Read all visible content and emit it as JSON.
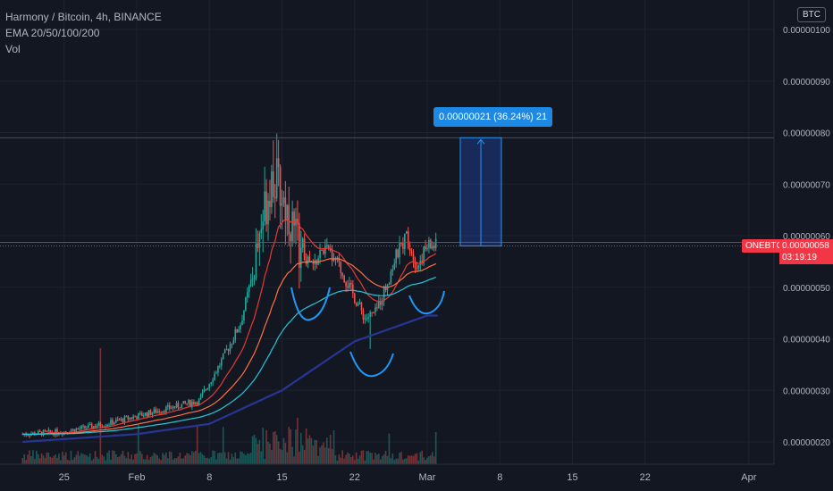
{
  "legend": {
    "title": "Harmony / Bitcoin, 4h, BINANCE",
    "indicator": "EMA 20/50/100/200",
    "volume": "Vol"
  },
  "currency_badge": "BTC",
  "symbol_tag": "ONEBTC",
  "last_price": "0.00000058",
  "countdown": "03:19:19",
  "measure_label": "0.00000021 (36.24%) 21",
  "colors": {
    "background": "#131722",
    "up": "#26a69a",
    "down": "#ef5350",
    "ema20": "#e53935",
    "ema50": "#ff7043",
    "ema100": "#26c6da",
    "ema200": "#283593",
    "pattern": "#2196f3",
    "measure": "#1e88e5",
    "price_tag": "#f23645"
  },
  "chart_data": {
    "type": "candlestick",
    "title": "Harmony / Bitcoin, 4h, BINANCE",
    "y_unit": "BTC",
    "y_ticks": [
      "0.00000100",
      "0.00000090",
      "0.00000080",
      "0.00000070",
      "0.00000060",
      "0.00000050",
      "0.00000040",
      "0.00000030",
      "0.00000020"
    ],
    "x_ticks": [
      "25",
      "Feb",
      "8",
      "15",
      "22",
      "Mar",
      "8",
      "15",
      "22",
      "Apr"
    ],
    "ylim": [
      1.8e-07,
      1.03e-06
    ],
    "price_path": [
      {
        "x": "Jan 21",
        "y": 2.15e-07
      },
      {
        "x": "Jan 25",
        "y": 2.2e-07
      },
      {
        "x": "Jan 29",
        "y": 2.35e-07
      },
      {
        "x": "Feb 1",
        "y": 2.5e-07
      },
      {
        "x": "Feb 4",
        "y": 2.65e-07
      },
      {
        "x": "Feb 7",
        "y": 2.8e-07
      },
      {
        "x": "Feb 9",
        "y": 3.5e-07
      },
      {
        "x": "Feb 11",
        "y": 4.3e-07
      },
      {
        "x": "Feb 12",
        "y": 5.1e-07
      },
      {
        "x": "Feb 13",
        "y": 6.2e-07
      },
      {
        "x": "Feb 14",
        "y": 7.2e-07
      },
      {
        "x": "Feb 15",
        "y": 6.8e-07
      },
      {
        "x": "Feb 16",
        "y": 6.2e-07
      },
      {
        "x": "Feb 17",
        "y": 5.6e-07
      },
      {
        "x": "Feb 18",
        "y": 5.4e-07
      },
      {
        "x": "Feb 19",
        "y": 5.75e-07
      },
      {
        "x": "Feb 20",
        "y": 5.6e-07
      },
      {
        "x": "Feb 21",
        "y": 5.2e-07
      },
      {
        "x": "Feb 22",
        "y": 4.8e-07
      },
      {
        "x": "Feb 23",
        "y": 4.4e-07
      },
      {
        "x": "Feb 24",
        "y": 4.5e-07
      },
      {
        "x": "Feb 25",
        "y": 5e-07
      },
      {
        "x": "Feb 26",
        "y": 5.6e-07
      },
      {
        "x": "Feb 27",
        "y": 6e-07
      },
      {
        "x": "Feb 28",
        "y": 5.4e-07
      },
      {
        "x": "Mar 1",
        "y": 5.8e-07
      }
    ],
    "high": 7.85e-07,
    "low": 3.8e-07,
    "ema200_path": [
      {
        "x": "Jan 21",
        "y": 2e-07
      },
      {
        "x": "Feb 1",
        "y": 2.15e-07
      },
      {
        "x": "Feb 8",
        "y": 2.35e-07
      },
      {
        "x": "Feb 15",
        "y": 3e-07
      },
      {
        "x": "Feb 22",
        "y": 3.95e-07
      },
      {
        "x": "Mar 1",
        "y": 4.45e-07
      }
    ],
    "annotations": {
      "measure": {
        "from": 5.8e-07,
        "to": 7.9e-07,
        "change": "0.00000021",
        "percent": "36.24%",
        "bars": 21
      },
      "pattern": "inverse head and shoulders"
    }
  }
}
